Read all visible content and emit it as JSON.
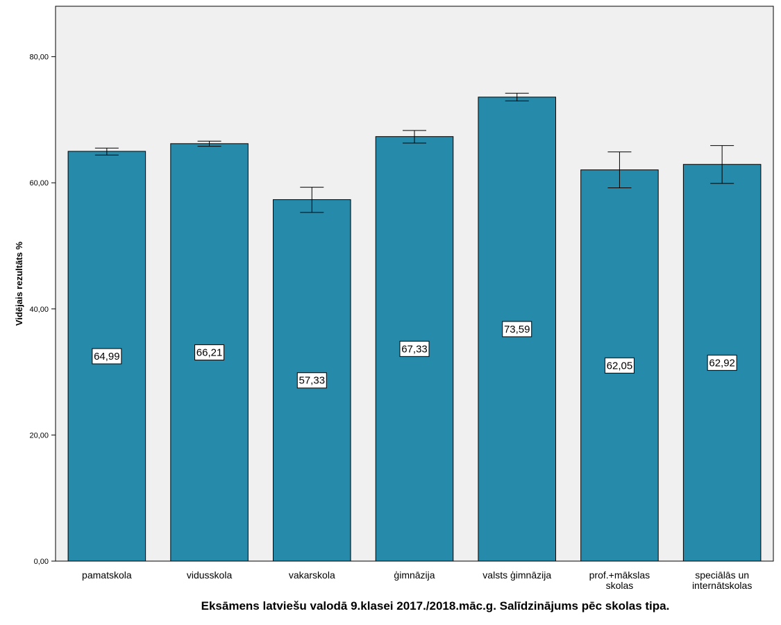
{
  "chart_data": {
    "type": "bar",
    "title": "",
    "xlabel": "Eksāmens latviešu valodā 9.klasei 2017./2018.māc.g. Salīdzinājums pēc skolas tipa.",
    "ylabel": "Vidējais rezultāts %",
    "ylim": [
      0,
      88
    ],
    "yticks": [
      0,
      20,
      40,
      60,
      80
    ],
    "ytick_labels": [
      "0,00",
      "20,00",
      "40,00",
      "60,00",
      "80,00"
    ],
    "grid": false,
    "bar_color": "#268AAB",
    "plot_background": "#F0F0F0",
    "categories": [
      [
        "pamatskola"
      ],
      [
        "vidusskola"
      ],
      [
        "vakarskola"
      ],
      [
        "ģimnāzija"
      ],
      [
        "valsts ģimnāzija"
      ],
      [
        "prof.+mākslas",
        "skolas"
      ],
      [
        "speciālās un",
        "internātskolas"
      ]
    ],
    "values": [
      64.99,
      66.21,
      57.33,
      67.33,
      73.59,
      62.05,
      62.92
    ],
    "value_labels": [
      "64,99",
      "66,21",
      "57,33",
      "67,33",
      "73,59",
      "62,05",
      "62,92"
    ],
    "error_bars": {
      "lower": [
        64.4,
        65.8,
        55.3,
        66.3,
        73.0,
        59.2,
        59.9
      ],
      "upper": [
        65.5,
        66.6,
        59.3,
        68.3,
        74.2,
        64.9,
        65.9
      ]
    }
  }
}
